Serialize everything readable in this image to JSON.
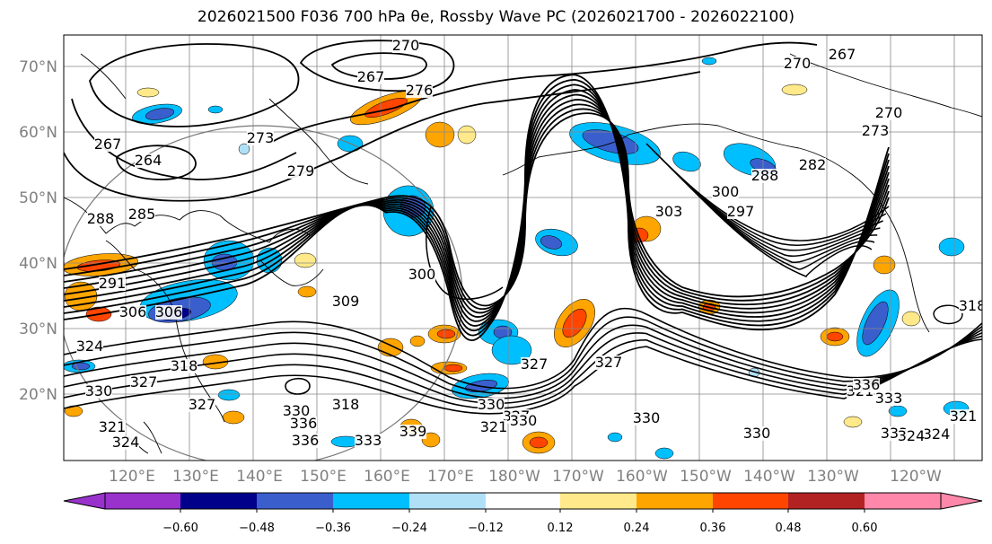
{
  "title": "2026021500 F036 700 hPa θe, Rossby Wave PC (2026021700 - 2026022100)",
  "lat_labels": [
    "70°N",
    "60°N",
    "50°N",
    "40°N",
    "30°N",
    "20°N"
  ],
  "lon_labels": [
    "120°E",
    "130°E",
    "140°E",
    "150°E",
    "160°E",
    "170°E",
    "180°W",
    "170°W",
    "160°W",
    "150°W",
    "140°W",
    "130°W",
    "120°W"
  ],
  "contour_labels": [
    "270",
    "267",
    "276",
    "270",
    "267",
    "270",
    "273",
    "264",
    "267",
    "273",
    "279",
    "282",
    "288",
    "285",
    "288",
    "291",
    "300",
    "297",
    "303",
    "300",
    "306",
    "306",
    "309",
    "324",
    "327",
    "330",
    "321",
    "324",
    "318",
    "330",
    "333",
    "336",
    "339",
    "327",
    "330",
    "330",
    "324",
    "321",
    "321",
    "327",
    "327",
    "330",
    "333",
    "333",
    "336",
    "318",
    "318",
    "336",
    "327",
    "324",
    "321",
    "330"
  ],
  "colorbar": {
    "ticks": [
      "−0.60",
      "−0.48",
      "−0.36",
      "−0.24",
      "−0.12",
      "0.12",
      "0.24",
      "0.36",
      "0.48",
      "0.60"
    ],
    "colors": [
      "#9932cc",
      "#00008b",
      "#3a5fcd",
      "#00bfff",
      "#b0e0f8",
      "#ffffff",
      "#ffe98a",
      "#ffa500",
      "#ff4500",
      "#b22222",
      "#ff88aa"
    ]
  },
  "shading": {
    "positive": [
      "#ffe98a",
      "#ffa500",
      "#ff4500",
      "#b22222"
    ],
    "negative": [
      "#b0e0f8",
      "#00bfff",
      "#3a5fcd",
      "#00008b"
    ]
  }
}
